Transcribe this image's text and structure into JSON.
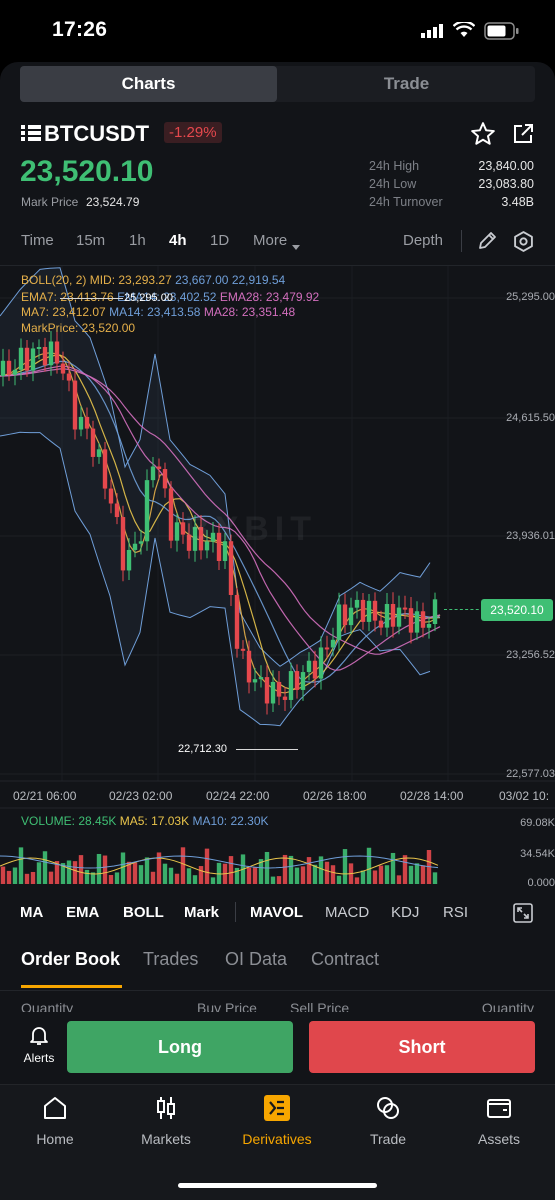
{
  "status": {
    "time": "17:26"
  },
  "tabs": [
    {
      "label": "Charts",
      "active": true
    },
    {
      "label": "Trade",
      "active": false
    }
  ],
  "ticker": {
    "symbol": "BTCUSDT",
    "change": "-1.29%",
    "price": "23,520.10",
    "mark_label": "Mark Price",
    "mark_value": "23,524.79",
    "stats": [
      {
        "label": "24h High",
        "value": "23,840.00"
      },
      {
        "label": "24h Low",
        "value": "23,083.80"
      },
      {
        "label": "24h Turnover",
        "value": "3.48B"
      }
    ]
  },
  "timeframes": [
    {
      "label": "Time",
      "active": false
    },
    {
      "label": "15m",
      "active": false
    },
    {
      "label": "1h",
      "active": false
    },
    {
      "label": "4h",
      "active": true
    },
    {
      "label": "1D",
      "active": false
    },
    {
      "label": "More",
      "active": false
    }
  ],
  "depth_label": "Depth",
  "indicators": {
    "boll": "BOLL(20, 2) MID: 23,293.27",
    "boll_up": "23,667.00",
    "boll_dn": "22,919.54",
    "ema7": "EMA7: 23,413.76",
    "ema14": "EMA14: 23,402.52",
    "ema28": "EMA28: 23,479.92",
    "ma7": "MA7: 23,412.07",
    "ma14": "MA14: 23,413.58",
    "ma28": "MA28: 23,351.48",
    "markprice": "MarkPrice: 23,520.00"
  },
  "chart": {
    "y_labels": [
      "25,295.00",
      "24,615.50",
      "23,936.01",
      "23,256.52",
      "22,577.03"
    ],
    "x_labels": [
      "02/21 06:00",
      "02/23 02:00",
      "02/24 22:00",
      "02/26 18:00",
      "02/28 14:00",
      "03/02 10:"
    ],
    "high_marker": "25,295.00",
    "low_marker": "22,712.30",
    "last_price_tag": "23,520.10",
    "watermark": "BYBIT",
    "colors": {
      "up": "#3fbf74",
      "down": "#e5484d"
    }
  },
  "volume": {
    "label": "VOLUME: 28.45K",
    "ma5": "MA5: 17.03K",
    "ma10": "MA10: 22.30K",
    "y_labels": [
      "69.08K",
      "34.54K",
      "0.000"
    ]
  },
  "toolbar": [
    "MA",
    "EMA",
    "BOLL",
    "Mark",
    "MAVOL",
    "MACD",
    "KDJ",
    "RSI"
  ],
  "orderbook": {
    "tabs": [
      "Order Book",
      "Trades",
      "OI Data",
      "Contract"
    ],
    "headers": [
      "Quantity",
      "Buy Price",
      "Sell Price",
      "Quantity"
    ]
  },
  "actions": {
    "alerts": "Alerts",
    "long": "Long",
    "short": "Short"
  },
  "nav": [
    {
      "label": "Home",
      "icon": "home-icon",
      "active": false
    },
    {
      "label": "Markets",
      "icon": "markets-icon",
      "active": false
    },
    {
      "label": "Derivatives",
      "icon": "derivatives-icon",
      "active": true
    },
    {
      "label": "Trade",
      "icon": "trade-icon",
      "active": false
    },
    {
      "label": "Assets",
      "icon": "assets-icon",
      "active": false
    }
  ]
}
